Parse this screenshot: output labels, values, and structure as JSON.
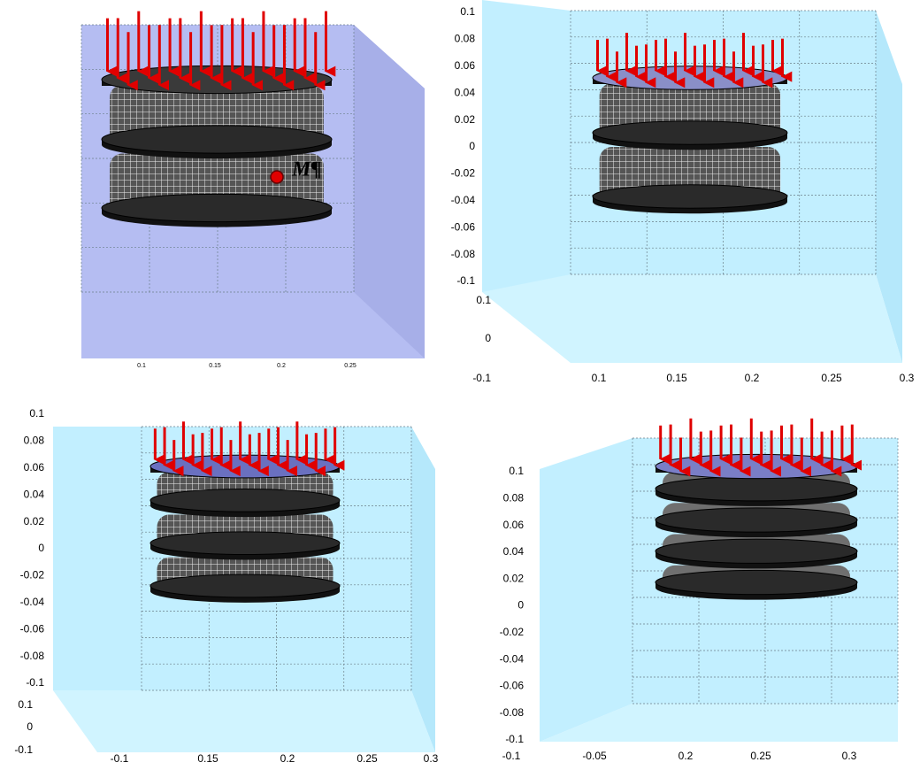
{
  "panels": [
    {
      "annotation": "M¶",
      "x_ticks": [
        "0.1",
        "0.15",
        "0.2",
        "0.25"
      ]
    },
    {
      "z_ticks": [
        "0.1",
        "0.08",
        "0.06",
        "0.04",
        "0.02",
        "0",
        "-0.02",
        "-0.04",
        "-0.06",
        "-0.08",
        "-0.1"
      ],
      "y_ticks": [
        "0.1",
        "0",
        "-0.1"
      ],
      "x_ticks": [
        "0.1",
        "0.15",
        "0.2",
        "0.25",
        "0.3"
      ]
    },
    {
      "z_ticks": [
        "0.1",
        "0.08",
        "0.06",
        "0.04",
        "0.02",
        "0",
        "-0.02",
        "-0.04",
        "-0.06",
        "-0.08",
        "-0.1"
      ],
      "y_ticks": [
        "0.1",
        "0",
        "-0.1"
      ],
      "x_ticks": [
        "-0.1",
        "0.15",
        "0.2",
        "0.25",
        "0.3"
      ]
    },
    {
      "z_ticks": [
        "0.1",
        "0.08",
        "0.06",
        "0.04",
        "0.02",
        "0",
        "-0.02",
        "-0.04",
        "-0.06",
        "-0.08",
        "-0.1"
      ],
      "x_ticks": [
        "-0.1",
        "-0.05",
        "0.2",
        "0.25",
        "0.3"
      ]
    }
  ]
}
